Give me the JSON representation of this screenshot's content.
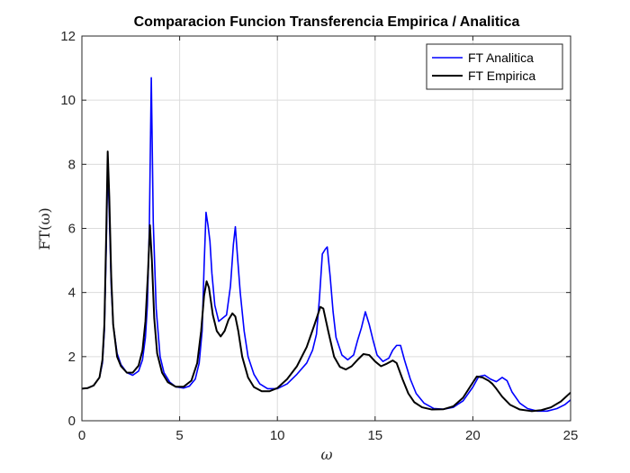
{
  "chart_data": {
    "type": "line",
    "title": "Comparacion Funcion Transferencia Empirica / Analitica",
    "xlabel": "ω",
    "ylabel": "FT(ω)",
    "xlim": [
      0,
      25
    ],
    "ylim": [
      0,
      12
    ],
    "xticks": [
      0,
      5,
      10,
      15,
      20,
      25
    ],
    "yticks": [
      0,
      2,
      4,
      6,
      8,
      10,
      12
    ],
    "grid": true,
    "legend_position": "top-right",
    "series": [
      {
        "name": "FT Analitica",
        "color": "#0000ff",
        "points": [
          [
            0,
            1.0
          ],
          [
            0.3,
            1.02
          ],
          [
            0.6,
            1.1
          ],
          [
            0.9,
            1.35
          ],
          [
            1.05,
            1.8
          ],
          [
            1.15,
            2.8
          ],
          [
            1.25,
            5.5
          ],
          [
            1.32,
            8.1
          ],
          [
            1.4,
            6.5
          ],
          [
            1.5,
            4.2
          ],
          [
            1.6,
            3.0
          ],
          [
            1.8,
            2.1
          ],
          [
            2.0,
            1.75
          ],
          [
            2.3,
            1.5
          ],
          [
            2.6,
            1.42
          ],
          [
            2.9,
            1.55
          ],
          [
            3.1,
            1.9
          ],
          [
            3.25,
            2.6
          ],
          [
            3.35,
            3.6
          ],
          [
            3.45,
            6.0
          ],
          [
            3.55,
            10.7
          ],
          [
            3.65,
            6.2
          ],
          [
            3.8,
            3.5
          ],
          [
            4.0,
            2.0
          ],
          [
            4.2,
            1.5
          ],
          [
            4.5,
            1.2
          ],
          [
            4.8,
            1.06
          ],
          [
            5.2,
            1.02
          ],
          [
            5.5,
            1.08
          ],
          [
            5.8,
            1.3
          ],
          [
            6.0,
            1.8
          ],
          [
            6.15,
            2.8
          ],
          [
            6.25,
            4.8
          ],
          [
            6.35,
            6.5
          ],
          [
            6.45,
            6.1
          ],
          [
            6.55,
            5.6
          ],
          [
            6.65,
            4.6
          ],
          [
            6.8,
            3.6
          ],
          [
            7.0,
            3.1
          ],
          [
            7.2,
            3.2
          ],
          [
            7.4,
            3.3
          ],
          [
            7.6,
            4.2
          ],
          [
            7.75,
            5.5
          ],
          [
            7.85,
            6.05
          ],
          [
            7.95,
            5.2
          ],
          [
            8.1,
            4.0
          ],
          [
            8.3,
            2.8
          ],
          [
            8.5,
            2.0
          ],
          [
            8.8,
            1.45
          ],
          [
            9.1,
            1.15
          ],
          [
            9.5,
            1.0
          ],
          [
            10.0,
            1.0
          ],
          [
            10.5,
            1.15
          ],
          [
            11.0,
            1.45
          ],
          [
            11.5,
            1.8
          ],
          [
            11.8,
            2.2
          ],
          [
            12.0,
            2.7
          ],
          [
            12.15,
            3.8
          ],
          [
            12.3,
            5.2
          ],
          [
            12.45,
            5.35
          ],
          [
            12.55,
            5.42
          ],
          [
            12.7,
            4.5
          ],
          [
            12.85,
            3.4
          ],
          [
            13.0,
            2.6
          ],
          [
            13.3,
            2.05
          ],
          [
            13.6,
            1.9
          ],
          [
            13.9,
            2.05
          ],
          [
            14.1,
            2.5
          ],
          [
            14.3,
            2.9
          ],
          [
            14.5,
            3.4
          ],
          [
            14.7,
            3.0
          ],
          [
            14.9,
            2.5
          ],
          [
            15.1,
            2.05
          ],
          [
            15.4,
            1.85
          ],
          [
            15.7,
            1.95
          ],
          [
            15.9,
            2.2
          ],
          [
            16.1,
            2.35
          ],
          [
            16.3,
            2.35
          ],
          [
            16.5,
            1.9
          ],
          [
            16.8,
            1.3
          ],
          [
            17.1,
            0.85
          ],
          [
            17.5,
            0.55
          ],
          [
            18.0,
            0.38
          ],
          [
            18.5,
            0.36
          ],
          [
            19.0,
            0.42
          ],
          [
            19.5,
            0.62
          ],
          [
            20.0,
            1.05
          ],
          [
            20.3,
            1.38
          ],
          [
            20.6,
            1.42
          ],
          [
            20.9,
            1.3
          ],
          [
            21.2,
            1.22
          ],
          [
            21.5,
            1.35
          ],
          [
            21.75,
            1.25
          ],
          [
            22.0,
            0.9
          ],
          [
            22.4,
            0.55
          ],
          [
            22.8,
            0.38
          ],
          [
            23.3,
            0.3
          ],
          [
            23.8,
            0.3
          ],
          [
            24.3,
            0.38
          ],
          [
            24.7,
            0.5
          ],
          [
            25.0,
            0.65
          ]
        ]
      },
      {
        "name": "FT Empirica",
        "color": "#000000",
        "points": [
          [
            0,
            1.0
          ],
          [
            0.3,
            1.02
          ],
          [
            0.6,
            1.1
          ],
          [
            0.9,
            1.35
          ],
          [
            1.05,
            1.9
          ],
          [
            1.15,
            3.0
          ],
          [
            1.25,
            6.0
          ],
          [
            1.32,
            8.4
          ],
          [
            1.4,
            7.0
          ],
          [
            1.5,
            4.5
          ],
          [
            1.6,
            3.0
          ],
          [
            1.8,
            2.0
          ],
          [
            2.0,
            1.7
          ],
          [
            2.3,
            1.5
          ],
          [
            2.6,
            1.5
          ],
          [
            2.9,
            1.72
          ],
          [
            3.1,
            2.2
          ],
          [
            3.25,
            3.1
          ],
          [
            3.38,
            4.6
          ],
          [
            3.48,
            6.1
          ],
          [
            3.58,
            5.0
          ],
          [
            3.7,
            3.2
          ],
          [
            3.85,
            2.1
          ],
          [
            4.1,
            1.5
          ],
          [
            4.4,
            1.2
          ],
          [
            4.8,
            1.06
          ],
          [
            5.2,
            1.06
          ],
          [
            5.6,
            1.25
          ],
          [
            5.9,
            1.8
          ],
          [
            6.1,
            2.8
          ],
          [
            6.25,
            3.9
          ],
          [
            6.38,
            4.35
          ],
          [
            6.5,
            4.15
          ],
          [
            6.7,
            3.3
          ],
          [
            6.9,
            2.8
          ],
          [
            7.1,
            2.63
          ],
          [
            7.3,
            2.8
          ],
          [
            7.5,
            3.15
          ],
          [
            7.7,
            3.35
          ],
          [
            7.85,
            3.25
          ],
          [
            8.0,
            2.8
          ],
          [
            8.2,
            2.0
          ],
          [
            8.5,
            1.35
          ],
          [
            8.8,
            1.05
          ],
          [
            9.2,
            0.92
          ],
          [
            9.6,
            0.92
          ],
          [
            10.0,
            1.02
          ],
          [
            10.5,
            1.3
          ],
          [
            11.0,
            1.7
          ],
          [
            11.5,
            2.3
          ],
          [
            11.9,
            3.0
          ],
          [
            12.2,
            3.55
          ],
          [
            12.35,
            3.5
          ],
          [
            12.6,
            2.8
          ],
          [
            12.9,
            2.0
          ],
          [
            13.2,
            1.68
          ],
          [
            13.5,
            1.6
          ],
          [
            13.8,
            1.7
          ],
          [
            14.1,
            1.9
          ],
          [
            14.4,
            2.08
          ],
          [
            14.7,
            2.05
          ],
          [
            15.0,
            1.85
          ],
          [
            15.3,
            1.7
          ],
          [
            15.6,
            1.78
          ],
          [
            15.9,
            1.88
          ],
          [
            16.1,
            1.8
          ],
          [
            16.4,
            1.3
          ],
          [
            16.7,
            0.85
          ],
          [
            17.0,
            0.58
          ],
          [
            17.4,
            0.42
          ],
          [
            17.9,
            0.35
          ],
          [
            18.5,
            0.36
          ],
          [
            19.0,
            0.45
          ],
          [
            19.5,
            0.72
          ],
          [
            19.9,
            1.1
          ],
          [
            20.2,
            1.38
          ],
          [
            20.5,
            1.35
          ],
          [
            20.8,
            1.25
          ],
          [
            21.0,
            1.15
          ],
          [
            21.2,
            1.0
          ],
          [
            21.5,
            0.75
          ],
          [
            21.9,
            0.5
          ],
          [
            22.4,
            0.35
          ],
          [
            23.0,
            0.3
          ],
          [
            23.5,
            0.33
          ],
          [
            24.0,
            0.42
          ],
          [
            24.5,
            0.6
          ],
          [
            25.0,
            0.88
          ]
        ]
      }
    ]
  }
}
